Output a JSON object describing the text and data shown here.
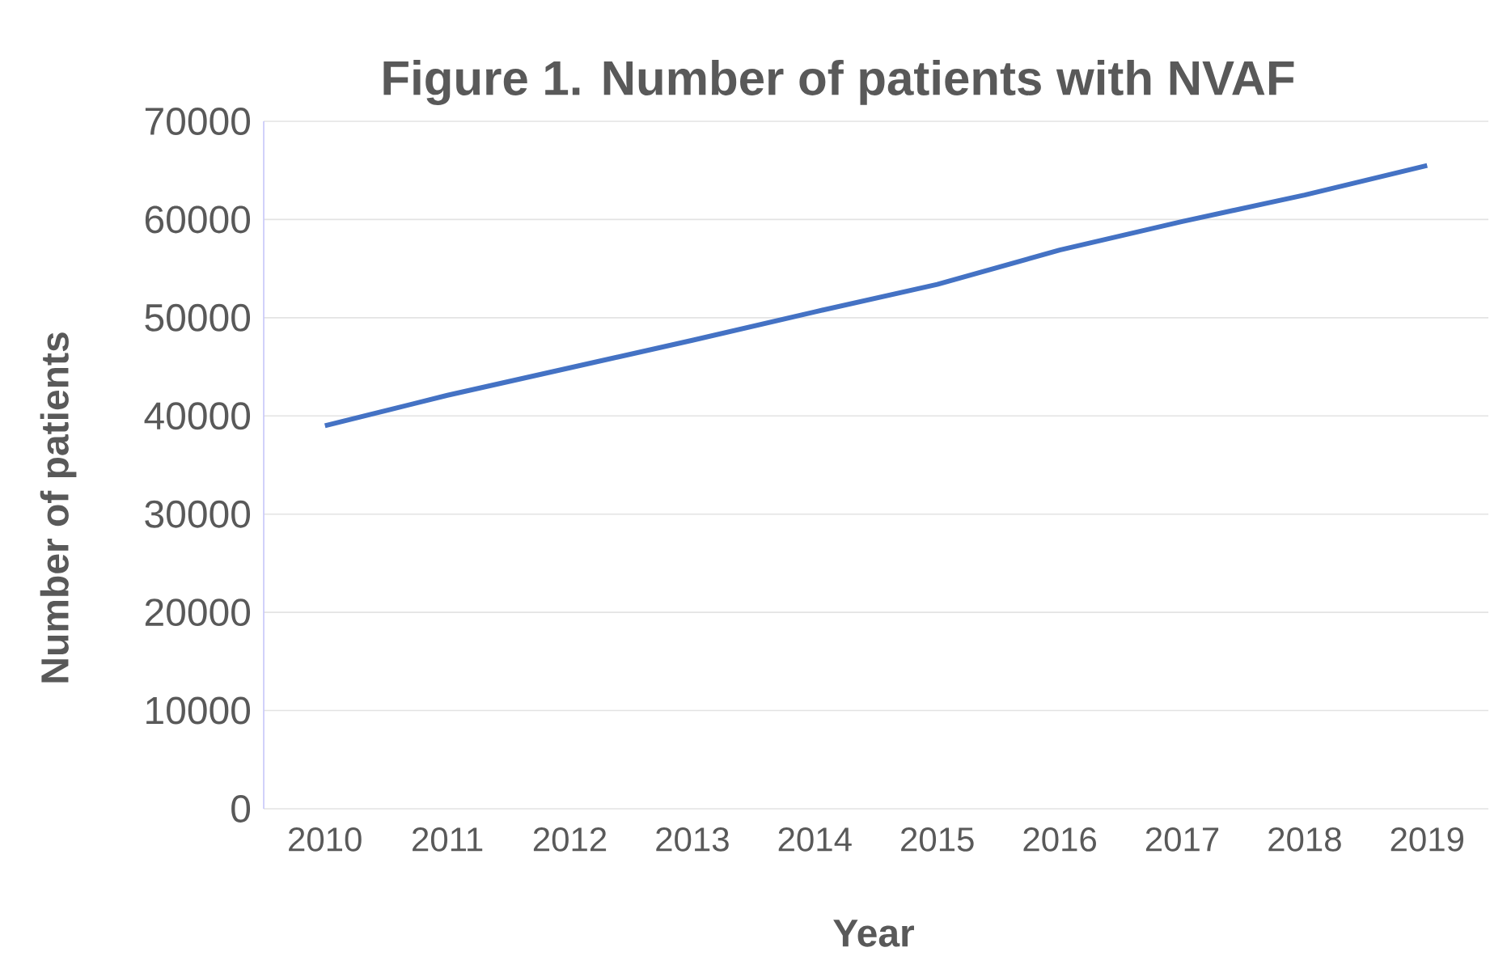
{
  "chart_data": {
    "type": "line",
    "title": "Figure 1. Number of patients with NVAF",
    "xlabel": "Year",
    "ylabel": "Number of patients",
    "categories": [
      "2010",
      "2011",
      "2012",
      "2013",
      "2014",
      "2015",
      "2016",
      "2017",
      "2018",
      "2019"
    ],
    "series": [
      {
        "color": "#4472c4",
        "values": [
          39000,
          42100,
          44900,
          47700,
          50600,
          53400,
          56900,
          59800,
          62500,
          65500
        ]
      }
    ],
    "ylim": [
      0,
      70000
    ],
    "yticks": [
      0,
      10000,
      20000,
      30000,
      40000,
      50000,
      60000,
      70000
    ],
    "grid": "y",
    "marker": "none",
    "line_style": "solid"
  }
}
